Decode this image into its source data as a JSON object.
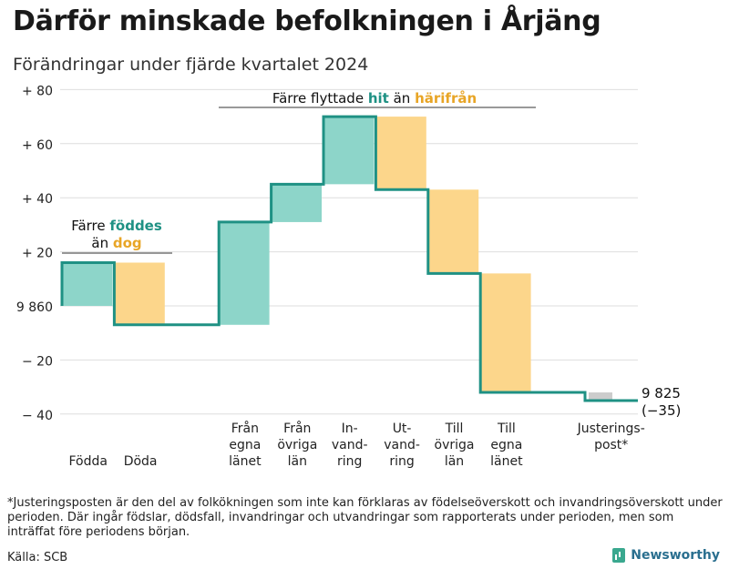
{
  "title": "Därför minskade befolkningen i Årjäng",
  "subtitle": "Förändringar under fjärde kvartalet 2024",
  "footnote": "*Justeringsposten är den del av folkökningen som inte kan förklaras av födelseöverskott och invandringsöverskott under perioden. Där ingår födslar, dödsfall, invandringar och utvandringar som rapporterats under perioden, men som inträffat före periodens början.",
  "source": "Källa: SCB",
  "brand": "Newsworthy",
  "colors": {
    "increase_fill": "#8dd5c9",
    "decrease_fill": "#fcd68b",
    "adjust_fill": "#cccccc",
    "line": "#1f9184",
    "accent_teal": "#1f9184",
    "accent_orange": "#e8a526"
  },
  "chart_data": {
    "type": "waterfall",
    "baseline": 9860,
    "yaxis": {
      "ticks": [
        {
          "value": 80,
          "label": "+ 80"
        },
        {
          "value": 60,
          "label": "+ 60"
        },
        {
          "value": 40,
          "label": "+ 40"
        },
        {
          "value": 20,
          "label": "+ 20"
        },
        {
          "value": 0,
          "label": "9 860"
        },
        {
          "value": -20,
          "label": "− 20"
        },
        {
          "value": -40,
          "label": "− 40"
        }
      ],
      "range": [
        -40,
        80
      ]
    },
    "steps": [
      {
        "label": "Födda",
        "start": 0,
        "end": 16,
        "kind": "increase"
      },
      {
        "label": "Döda",
        "start": 16,
        "end": -7,
        "kind": "decrease"
      },
      {
        "label": "",
        "start": -7,
        "end": -7,
        "kind": "spacer"
      },
      {
        "label": "Från\negna\nlänet",
        "start": -7,
        "end": 31,
        "kind": "increase"
      },
      {
        "label": "Från\növriga\nlän",
        "start": 31,
        "end": 45,
        "kind": "increase"
      },
      {
        "label": "In-\nvand-\nring",
        "start": 45,
        "end": 70,
        "kind": "increase"
      },
      {
        "label": "Ut-\nvand-\nring",
        "start": 70,
        "end": 43,
        "kind": "decrease"
      },
      {
        "label": "Till\növriga\nlän",
        "start": 43,
        "end": 12,
        "kind": "decrease"
      },
      {
        "label": "Till\negna\nlänet",
        "start": 12,
        "end": -32,
        "kind": "decrease"
      },
      {
        "label": "",
        "start": -32,
        "end": -32,
        "kind": "spacer"
      },
      {
        "label": "Justerings-\npost*",
        "start": -32,
        "end": -35,
        "kind": "adjust"
      }
    ],
    "end_label": "9 825",
    "end_change": "(−35)",
    "annotations": [
      {
        "id": "births",
        "prefix": "Färre",
        "highlight1": "föddes",
        "line2_prefix": "än",
        "highlight2": "dog"
      },
      {
        "id": "migration",
        "prefix": "Färre flyttade",
        "highlight1": "hit",
        "line2_prefix": "än",
        "highlight2": "härifrån"
      }
    ]
  }
}
